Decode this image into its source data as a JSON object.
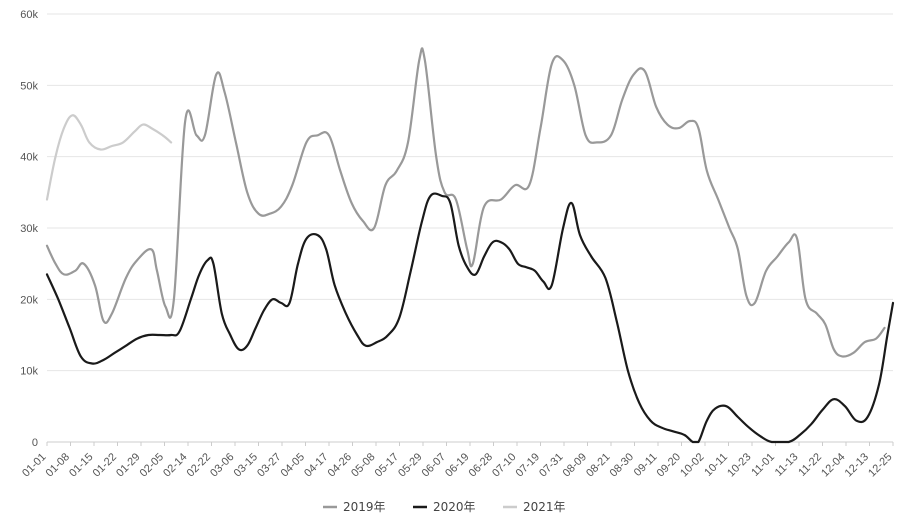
{
  "chart_data": {
    "type": "line",
    "title": "",
    "xlabel": "",
    "ylabel": "",
    "ylim": [
      0,
      60000
    ],
    "y_ticks": [
      0,
      10000,
      20000,
      30000,
      40000,
      50000,
      60000
    ],
    "y_tick_labels": [
      "0",
      "10k",
      "20k",
      "30k",
      "40k",
      "50k",
      "60k"
    ],
    "x_tick_labels": [
      "01-01",
      "01-08",
      "01-15",
      "01-22",
      "01-29",
      "02-05",
      "02-14",
      "02-22",
      "03-06",
      "03-15",
      "03-27",
      "04-05",
      "04-17",
      "04-26",
      "05-08",
      "05-17",
      "05-29",
      "06-07",
      "06-19",
      "06-28",
      "07-10",
      "07-19",
      "07-31",
      "08-09",
      "08-21",
      "08-30",
      "09-11",
      "09-20",
      "10-02",
      "10-11",
      "10-23",
      "11-01",
      "11-13",
      "11-22",
      "12-04",
      "12-13",
      "12-25"
    ],
    "grid": true,
    "legend_position": "bottom-center",
    "series": [
      {
        "name": "2019年",
        "color": "#999999",
        "values": [
          [
            1,
            27500
          ],
          [
            4,
            25000
          ],
          [
            7,
            23500
          ],
          [
            11,
            24000
          ],
          [
            14,
            25000
          ],
          [
            18,
            22000
          ],
          [
            21,
            17000
          ],
          [
            24,
            18000
          ],
          [
            29,
            23000
          ],
          [
            33,
            25500
          ],
          [
            38,
            27000
          ],
          [
            40,
            24000
          ],
          [
            43,
            19000
          ],
          [
            46,
            20000
          ],
          [
            50,
            45000
          ],
          [
            54,
            43000
          ],
          [
            57,
            43000
          ],
          [
            61,
            51500
          ],
          [
            64,
            49000
          ],
          [
            68,
            42000
          ],
          [
            72,
            35000
          ],
          [
            76,
            32000
          ],
          [
            80,
            32000
          ],
          [
            84,
            33000
          ],
          [
            88,
            36000
          ],
          [
            93,
            42000
          ],
          [
            97,
            43000
          ],
          [
            101,
            43000
          ],
          [
            105,
            38000
          ],
          [
            109,
            33500
          ],
          [
            113,
            31000
          ],
          [
            117,
            30000
          ],
          [
            121,
            36000
          ],
          [
            125,
            38000
          ],
          [
            129,
            42000
          ],
          [
            133,
            53500
          ],
          [
            135,
            53500
          ],
          [
            139,
            40000
          ],
          [
            142,
            35000
          ],
          [
            146,
            34000
          ],
          [
            150,
            27000
          ],
          [
            152,
            25000
          ],
          [
            156,
            33000
          ],
          [
            162,
            34000
          ],
          [
            167,
            36000
          ],
          [
            172,
            36000
          ],
          [
            176,
            44000
          ],
          [
            180,
            53000
          ],
          [
            184,
            53500
          ],
          [
            188,
            50000
          ],
          [
            192,
            43000
          ],
          [
            196,
            42000
          ],
          [
            201,
            43000
          ],
          [
            205,
            48000
          ],
          [
            209,
            51500
          ],
          [
            213,
            52000
          ],
          [
            217,
            47000
          ],
          [
            221,
            44500
          ],
          [
            225,
            44000
          ],
          [
            229,
            45000
          ],
          [
            232,
            44000
          ],
          [
            235,
            38000
          ],
          [
            239,
            34000
          ],
          [
            243,
            30000
          ],
          [
            246,
            27000
          ],
          [
            249,
            20500
          ],
          [
            252,
            19500
          ],
          [
            256,
            24000
          ],
          [
            260,
            26000
          ],
          [
            264,
            28000
          ],
          [
            267,
            28500
          ],
          [
            270,
            20000
          ],
          [
            274,
            18000
          ],
          [
            277,
            16500
          ],
          [
            280,
            13000
          ],
          [
            283,
            12000
          ],
          [
            287,
            12500
          ],
          [
            291,
            14000
          ],
          [
            295,
            14500
          ],
          [
            298,
            16000
          ]
        ]
      },
      {
        "name": "2020年",
        "color": "#1a1a1a",
        "values": [
          [
            1,
            23500
          ],
          [
            5,
            20000
          ],
          [
            9,
            16000
          ],
          [
            13,
            12000
          ],
          [
            17,
            11000
          ],
          [
            21,
            11500
          ],
          [
            25,
            12500
          ],
          [
            29,
            13500
          ],
          [
            33,
            14500
          ],
          [
            37,
            15000
          ],
          [
            41,
            15000
          ],
          [
            45,
            15000
          ],
          [
            48,
            15500
          ],
          [
            52,
            20000
          ],
          [
            55,
            23500
          ],
          [
            58,
            25500
          ],
          [
            60,
            25000
          ],
          [
            63,
            18000
          ],
          [
            66,
            15000
          ],
          [
            69,
            13000
          ],
          [
            72,
            13500
          ],
          [
            75,
            16000
          ],
          [
            78,
            18500
          ],
          [
            81,
            20000
          ],
          [
            84,
            19500
          ],
          [
            87,
            19500
          ],
          [
            90,
            25000
          ],
          [
            93,
            28500
          ],
          [
            97,
            29000
          ],
          [
            100,
            27000
          ],
          [
            103,
            22000
          ],
          [
            107,
            18000
          ],
          [
            111,
            15000
          ],
          [
            114,
            13500
          ],
          [
            118,
            14000
          ],
          [
            122,
            15000
          ],
          [
            126,
            17500
          ],
          [
            130,
            24000
          ],
          [
            134,
            31000
          ],
          [
            137,
            34500
          ],
          [
            141,
            34500
          ],
          [
            144,
            33500
          ],
          [
            147,
            27500
          ],
          [
            150,
            24500
          ],
          [
            153,
            23500
          ],
          [
            156,
            26000
          ],
          [
            159,
            28000
          ],
          [
            162,
            28000
          ],
          [
            165,
            27000
          ],
          [
            168,
            25000
          ],
          [
            171,
            24500
          ],
          [
            174,
            24000
          ],
          [
            177,
            22500
          ],
          [
            180,
            22000
          ],
          [
            184,
            30000
          ],
          [
            187,
            33500
          ],
          [
            190,
            29000
          ],
          [
            194,
            26000
          ],
          [
            199,
            23000
          ],
          [
            203,
            17000
          ],
          [
            207,
            10000
          ],
          [
            211,
            5500
          ],
          [
            215,
            3000
          ],
          [
            219,
            2000
          ],
          [
            223,
            1500
          ],
          [
            227,
            1000
          ],
          [
            230,
            0
          ],
          [
            232,
            0
          ],
          [
            235,
            3000
          ],
          [
            238,
            4700
          ],
          [
            242,
            5000
          ],
          [
            246,
            3500
          ],
          [
            250,
            2000
          ],
          [
            254,
            800
          ],
          [
            258,
            0
          ],
          [
            264,
            0
          ],
          [
            268,
            1000
          ],
          [
            272,
            2500
          ],
          [
            276,
            4500
          ],
          [
            280,
            6000
          ],
          [
            284,
            5000
          ],
          [
            288,
            3000
          ],
          [
            292,
            3500
          ],
          [
            296,
            8000
          ],
          [
            299,
            15000
          ],
          [
            301,
            19500
          ]
        ]
      },
      {
        "name": "2021年",
        "color": "#cccccc",
        "values": [
          [
            1,
            34000
          ],
          [
            4,
            40000
          ],
          [
            7,
            44000
          ],
          [
            10,
            45800
          ],
          [
            13,
            44500
          ],
          [
            16,
            42000
          ],
          [
            20,
            41000
          ],
          [
            24,
            41500
          ],
          [
            28,
            42000
          ],
          [
            32,
            43500
          ],
          [
            35,
            44500
          ],
          [
            38,
            44000
          ],
          [
            42,
            43000
          ],
          [
            45,
            42000
          ]
        ]
      }
    ]
  }
}
